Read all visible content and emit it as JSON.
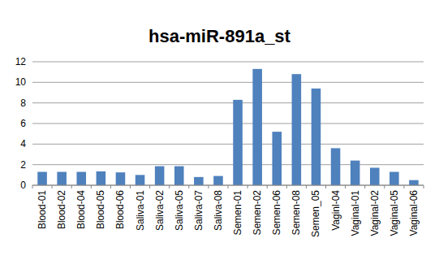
{
  "chart_data": {
    "type": "bar",
    "title": "hsa-miR-891a_st",
    "categories": [
      "Blood-01",
      "Blood-02",
      "Blood-04",
      "Blood-05",
      "Blood-06",
      "Saliva-01",
      "Saliva-02",
      "Saliva-05",
      "Saliva-07",
      "Saliva-08",
      "Semen-01",
      "Semen-02",
      "Semen-06",
      "Semen-08",
      "Semen_05",
      "Vaginl-04",
      "Vaginal-01",
      "Vaginal-02",
      "Vaginal-05",
      "Vaginal-06"
    ],
    "values": [
      1.3,
      1.3,
      1.3,
      1.35,
      1.25,
      1.0,
      1.85,
      1.85,
      0.8,
      0.9,
      8.3,
      11.3,
      5.2,
      10.8,
      9.4,
      3.6,
      2.4,
      1.7,
      1.3,
      0.5
    ],
    "color": "#4f81bd",
    "ylim": [
      0,
      12
    ],
    "yticks": [
      0,
      2,
      4,
      6,
      8,
      10,
      12
    ],
    "grid": true
  }
}
